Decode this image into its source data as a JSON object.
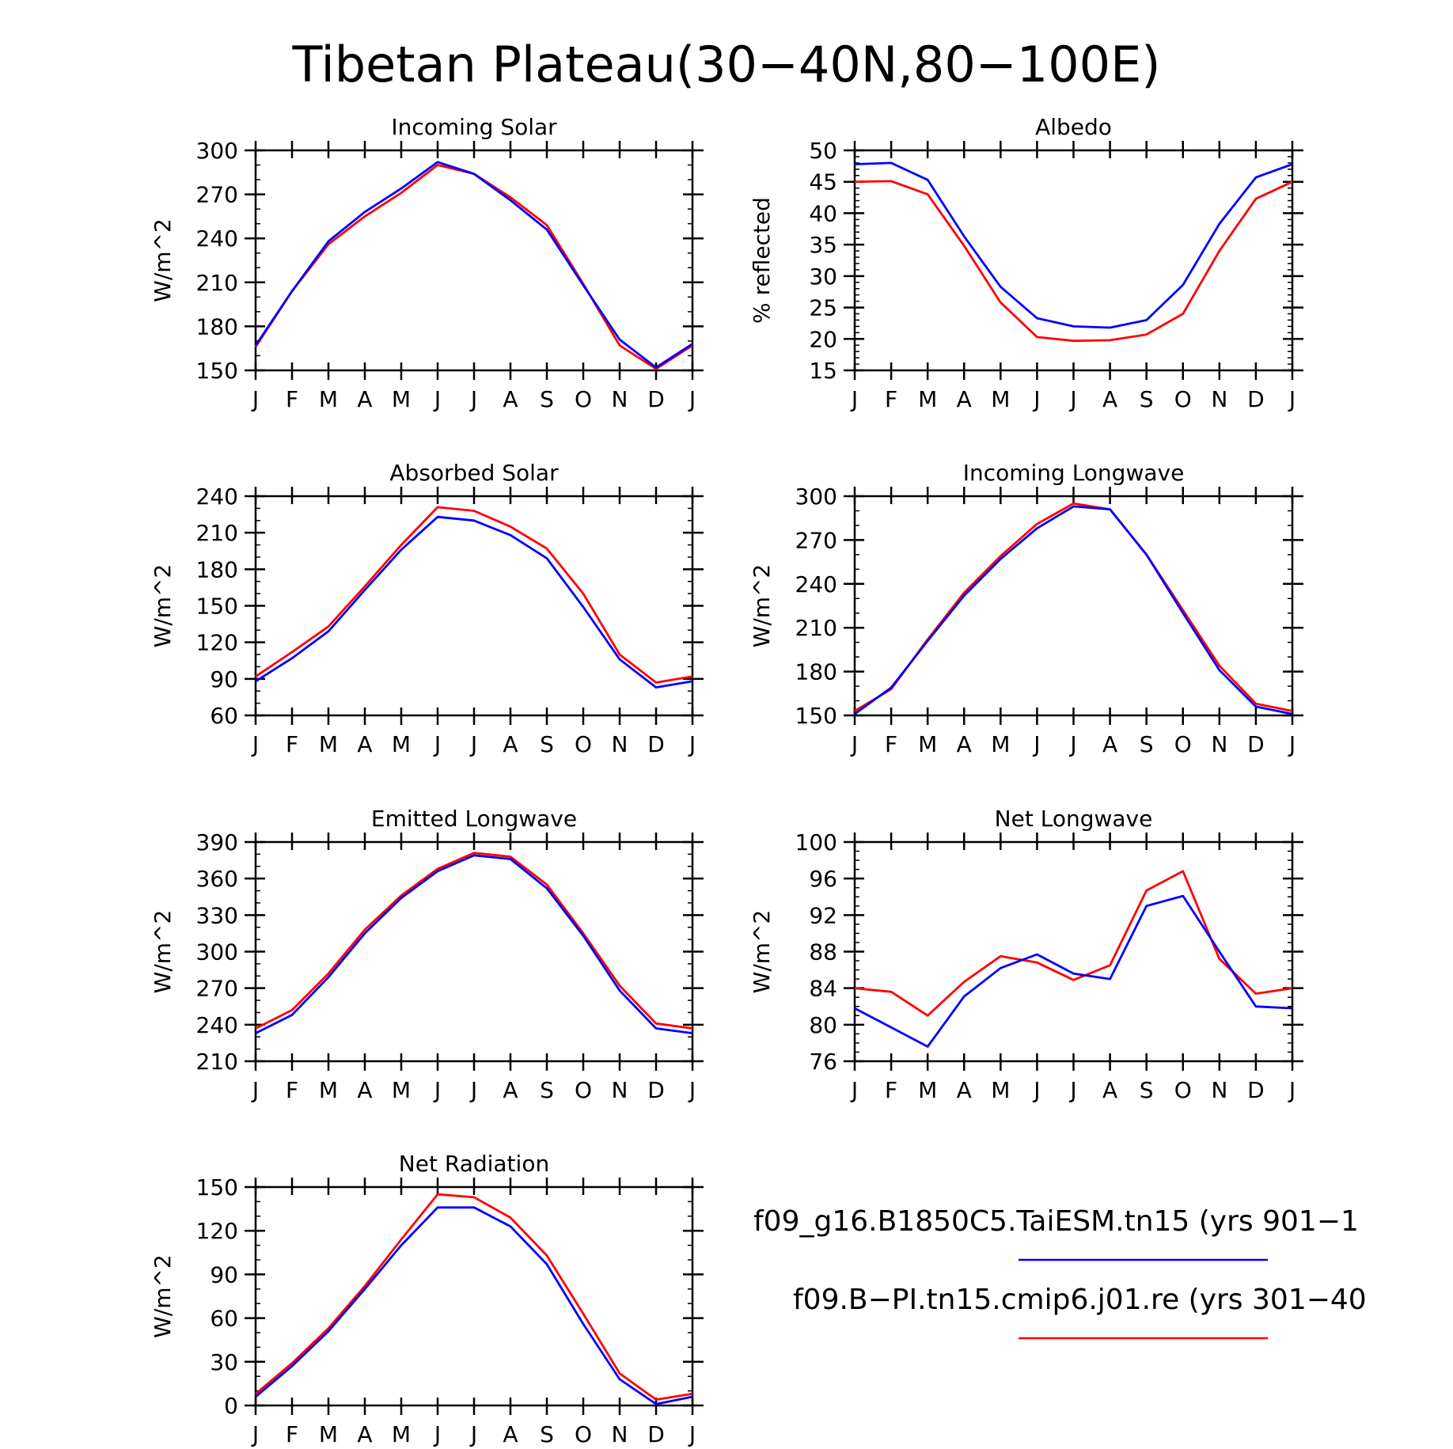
{
  "figure": {
    "title": "Tibetan Plateau(30−40N,80−100E)"
  },
  "colors": {
    "blue": "#0000ff",
    "red": "#ff0000",
    "axis": "#000000",
    "background": "#ffffff"
  },
  "legend": {
    "entries": [
      {
        "label": "f09_g16.B1850C5.TaiESM.tn15 (yrs 901−1",
        "color": "#0000ff"
      },
      {
        "label": "f09.B−PI.tn15.cmip6.j01.re (yrs 301−40",
        "color": "#ff0000"
      }
    ]
  },
  "chart_data": [
    {
      "type": "line",
      "title": "Incoming Solar",
      "ylabel": "W/m^2",
      "xlabel": "",
      "x": [
        "J",
        "F",
        "M",
        "A",
        "M",
        "J",
        "J",
        "A",
        "S",
        "O",
        "N",
        "D",
        "J"
      ],
      "ylim": [
        150,
        300
      ],
      "yticks": [
        150,
        180,
        210,
        240,
        270,
        300
      ],
      "yminor": 10,
      "series": [
        {
          "name": "f09_g16.B1850C5.TaiESM.tn15",
          "color": "#0000ff",
          "values": [
            167,
            204,
            238,
            258,
            274,
            292,
            284,
            266,
            246,
            208,
            171,
            152,
            168
          ]
        },
        {
          "name": "f09.B-PI.tn15.cmip6.j01.re",
          "color": "#ff0000",
          "values": [
            166,
            204,
            236,
            255,
            271,
            290,
            284,
            268,
            249,
            209,
            167,
            151,
            167
          ]
        }
      ]
    },
    {
      "type": "line",
      "title": "Albedo",
      "ylabel": "% reflected",
      "xlabel": "",
      "x": [
        "J",
        "F",
        "M",
        "A",
        "M",
        "J",
        "J",
        "A",
        "S",
        "O",
        "N",
        "D",
        "J"
      ],
      "ylim": [
        15,
        50
      ],
      "yticks": [
        15,
        20,
        25,
        30,
        35,
        40,
        45,
        50
      ],
      "yminor": 1,
      "series": [
        {
          "name": "f09_g16.B1850C5.TaiESM.tn15",
          "color": "#0000ff",
          "values": [
            47.8,
            48.0,
            45.3,
            36.3,
            28.3,
            23.3,
            22.0,
            21.8,
            23.0,
            28.6,
            38.3,
            45.7,
            47.8
          ]
        },
        {
          "name": "f09.B-PI.tn15.cmip6.j01.re",
          "color": "#ff0000",
          "values": [
            45.0,
            45.1,
            43.0,
            34.8,
            25.8,
            20.3,
            19.7,
            19.8,
            20.7,
            24.0,
            34.0,
            42.3,
            45.0
          ]
        }
      ]
    },
    {
      "type": "line",
      "title": "Absorbed Solar",
      "ylabel": "W/m^2",
      "xlabel": "",
      "x": [
        "J",
        "F",
        "M",
        "A",
        "M",
        "J",
        "J",
        "A",
        "S",
        "O",
        "N",
        "D",
        "J"
      ],
      "ylim": [
        60,
        240
      ],
      "yticks": [
        60,
        90,
        120,
        150,
        180,
        210,
        240
      ],
      "yminor": 10,
      "series": [
        {
          "name": "f09_g16.B1850C5.TaiESM.tn15",
          "color": "#0000ff",
          "values": [
            88,
            107,
            129,
            163,
            196,
            223,
            220,
            208,
            189,
            149,
            106,
            83,
            88
          ]
        },
        {
          "name": "f09.B-PI.tn15.cmip6.j01.re",
          "color": "#ff0000",
          "values": [
            92,
            112,
            133,
            166,
            200,
            231,
            228,
            215,
            197,
            160,
            110,
            87,
            92
          ]
        }
      ]
    },
    {
      "type": "line",
      "title": "Incoming Longwave",
      "ylabel": "W/m^2",
      "xlabel": "",
      "x": [
        "J",
        "F",
        "M",
        "A",
        "M",
        "J",
        "J",
        "A",
        "S",
        "O",
        "N",
        "D",
        "J"
      ],
      "ylim": [
        150,
        300
      ],
      "yticks": [
        150,
        180,
        210,
        240,
        270,
        300
      ],
      "yminor": 10,
      "series": [
        {
          "name": "f09_g16.B1850C5.TaiESM.tn15",
          "color": "#0000ff",
          "values": [
            151,
            169,
            201,
            232,
            257,
            278,
            293,
            291,
            260,
            220,
            181,
            156,
            151
          ]
        },
        {
          "name": "f09.B-PI.tn15.cmip6.j01.re",
          "color": "#ff0000",
          "values": [
            153,
            168,
            202,
            234,
            259,
            281,
            295,
            291,
            260,
            222,
            184,
            158,
            153
          ]
        }
      ]
    },
    {
      "type": "line",
      "title": "Emitted Longwave",
      "ylabel": "W/m^2",
      "xlabel": "",
      "x": [
        "J",
        "F",
        "M",
        "A",
        "M",
        "J",
        "J",
        "A",
        "S",
        "O",
        "N",
        "D",
        "J"
      ],
      "ylim": [
        210,
        390
      ],
      "yticks": [
        210,
        240,
        270,
        300,
        330,
        360,
        390
      ],
      "yminor": 10,
      "series": [
        {
          "name": "f09_g16.B1850C5.TaiESM.tn15",
          "color": "#0000ff",
          "values": [
            233,
            248,
            279,
            315,
            344,
            366,
            379,
            376,
            352,
            313,
            268,
            237,
            233
          ]
        },
        {
          "name": "f09.B-PI.tn15.cmip6.j01.re",
          "color": "#ff0000",
          "values": [
            237,
            252,
            282,
            318,
            346,
            368,
            381,
            378,
            355,
            315,
            272,
            241,
            237
          ]
        }
      ]
    },
    {
      "type": "line",
      "title": "Net Longwave",
      "ylabel": "W/m^2",
      "xlabel": "",
      "x": [
        "J",
        "F",
        "M",
        "A",
        "M",
        "J",
        "J",
        "A",
        "S",
        "O",
        "N",
        "D",
        "J"
      ],
      "ylim": [
        76,
        100
      ],
      "yticks": [
        76,
        80,
        84,
        88,
        92,
        96,
        100
      ],
      "yminor": 1,
      "series": [
        {
          "name": "f09_g16.B1850C5.TaiESM.tn15",
          "color": "#0000ff",
          "values": [
            81.8,
            79.7,
            77.6,
            83.1,
            86.2,
            87.7,
            85.6,
            85.0,
            93.0,
            94.1,
            88.0,
            82.0,
            81.8
          ]
        },
        {
          "name": "f09.B-PI.tn15.cmip6.j01.re",
          "color": "#ff0000",
          "values": [
            84.0,
            83.6,
            81.0,
            84.7,
            87.5,
            86.8,
            84.9,
            86.5,
            94.7,
            96.8,
            87.2,
            83.4,
            84.0
          ]
        }
      ]
    },
    {
      "type": "line",
      "title": "Net Radiation",
      "ylabel": "W/m^2",
      "xlabel": "",
      "x": [
        "J",
        "F",
        "M",
        "A",
        "M",
        "J",
        "J",
        "A",
        "S",
        "O",
        "N",
        "D",
        "J"
      ],
      "ylim": [
        0,
        150
      ],
      "yticks": [
        0,
        30,
        60,
        90,
        120,
        150
      ],
      "yminor": 10,
      "series": [
        {
          "name": "f09_g16.B1850C5.TaiESM.tn15",
          "color": "#0000ff",
          "values": [
            6,
            27,
            51,
            80,
            110,
            136,
            136,
            123,
            97,
            56,
            18,
            1,
            6
          ]
        },
        {
          "name": "f09.B-PI.tn15.cmip6.j01.re",
          "color": "#ff0000",
          "values": [
            8,
            29,
            53,
            82,
            114,
            145,
            143,
            129,
            103,
            63,
            22,
            4,
            8
          ]
        }
      ]
    }
  ]
}
